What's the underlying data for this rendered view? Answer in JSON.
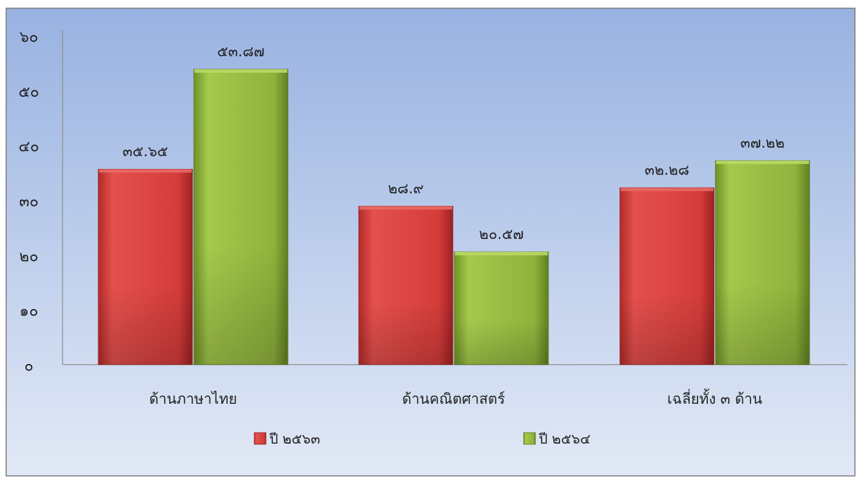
{
  "chart_data": {
    "type": "bar",
    "categories": [
      "ด้านภาษาไทย",
      "ด้านคณิตศาสตร์",
      "เฉลี่ยทั้ง ๓ ด้าน"
    ],
    "series": [
      {
        "name": "ปี ๒๕๖๓",
        "values": [
          35.65,
          28.9,
          32.28
        ],
        "labels": [
          "๓๕.๖๕",
          "๒๘.๙",
          "๓๒.๒๘"
        ]
      },
      {
        "name": "ปี ๒๕๖๔",
        "values": [
          53.87,
          20.57,
          37.22
        ],
        "labels": [
          "๕๓.๘๗",
          "๒๐.๕๗",
          "๓๗.๒๒"
        ]
      }
    ],
    "y_ticks": [
      {
        "value": 0,
        "label": "๐"
      },
      {
        "value": 10,
        "label": "๑๐"
      },
      {
        "value": 20,
        "label": "๒๐"
      },
      {
        "value": 30,
        "label": "๓๐"
      },
      {
        "value": 40,
        "label": "๔๐"
      },
      {
        "value": 50,
        "label": "๕๐"
      },
      {
        "value": 60,
        "label": "๖๐"
      }
    ],
    "ylim": [
      0,
      60
    ],
    "grid": false,
    "legend_position": "bottom",
    "colors": {
      "series_0": "#d9403f",
      "series_1": "#8fb33c",
      "background_top": "#9db6e3",
      "background_bottom": "#dfe7f5"
    }
  }
}
